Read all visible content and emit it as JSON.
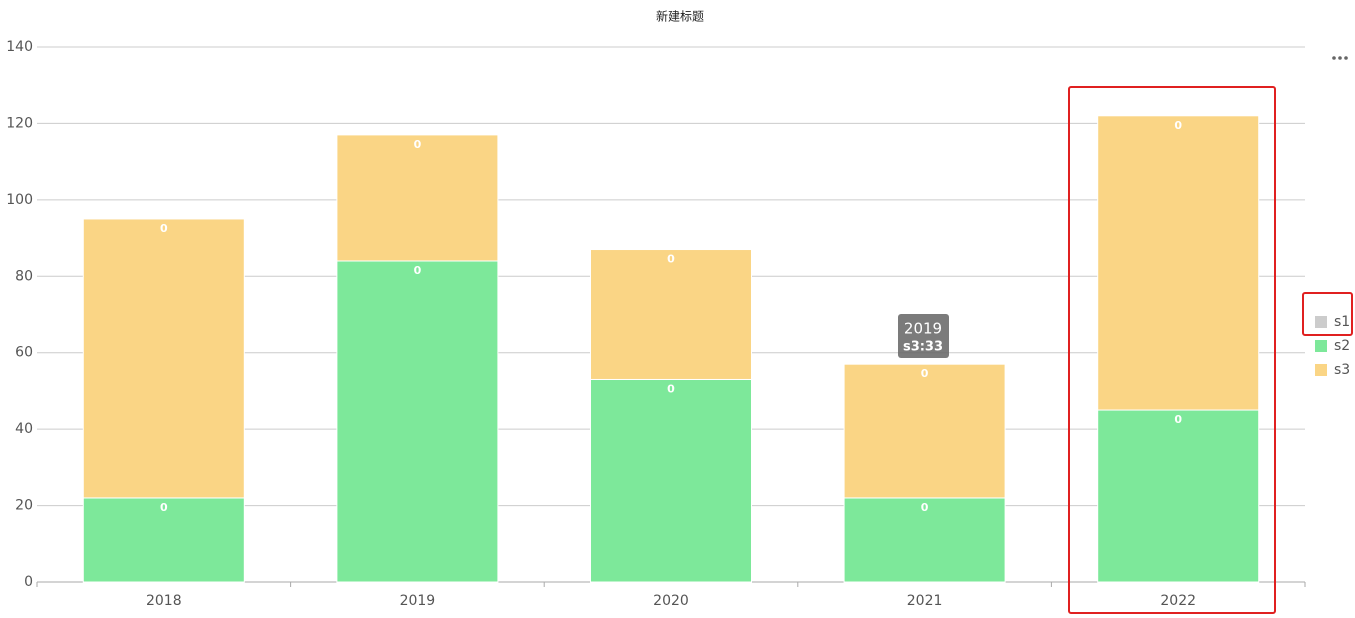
{
  "chart_data": {
    "type": "stacked_bar",
    "title": "新建标题",
    "categories": [
      "2018",
      "2019",
      "2020",
      "2021",
      "2022"
    ],
    "series": [
      {
        "name": "s1",
        "color": "#cccccc",
        "values": [
          0,
          0,
          0,
          0,
          0
        ],
        "hidden": true
      },
      {
        "name": "s2",
        "color": "#7de89a",
        "values": [
          22,
          84,
          53,
          22,
          45
        ]
      },
      {
        "name": "s3",
        "color": "#fad585",
        "values": [
          73,
          33,
          34,
          35,
          77
        ]
      }
    ],
    "ylim": [
      0,
      140
    ],
    "yticks": [
      0,
      20,
      40,
      60,
      80,
      100,
      120,
      140
    ],
    "grid": true,
    "legend": "right",
    "tooltip": {
      "title": "2019",
      "text": "s3:33"
    }
  }
}
